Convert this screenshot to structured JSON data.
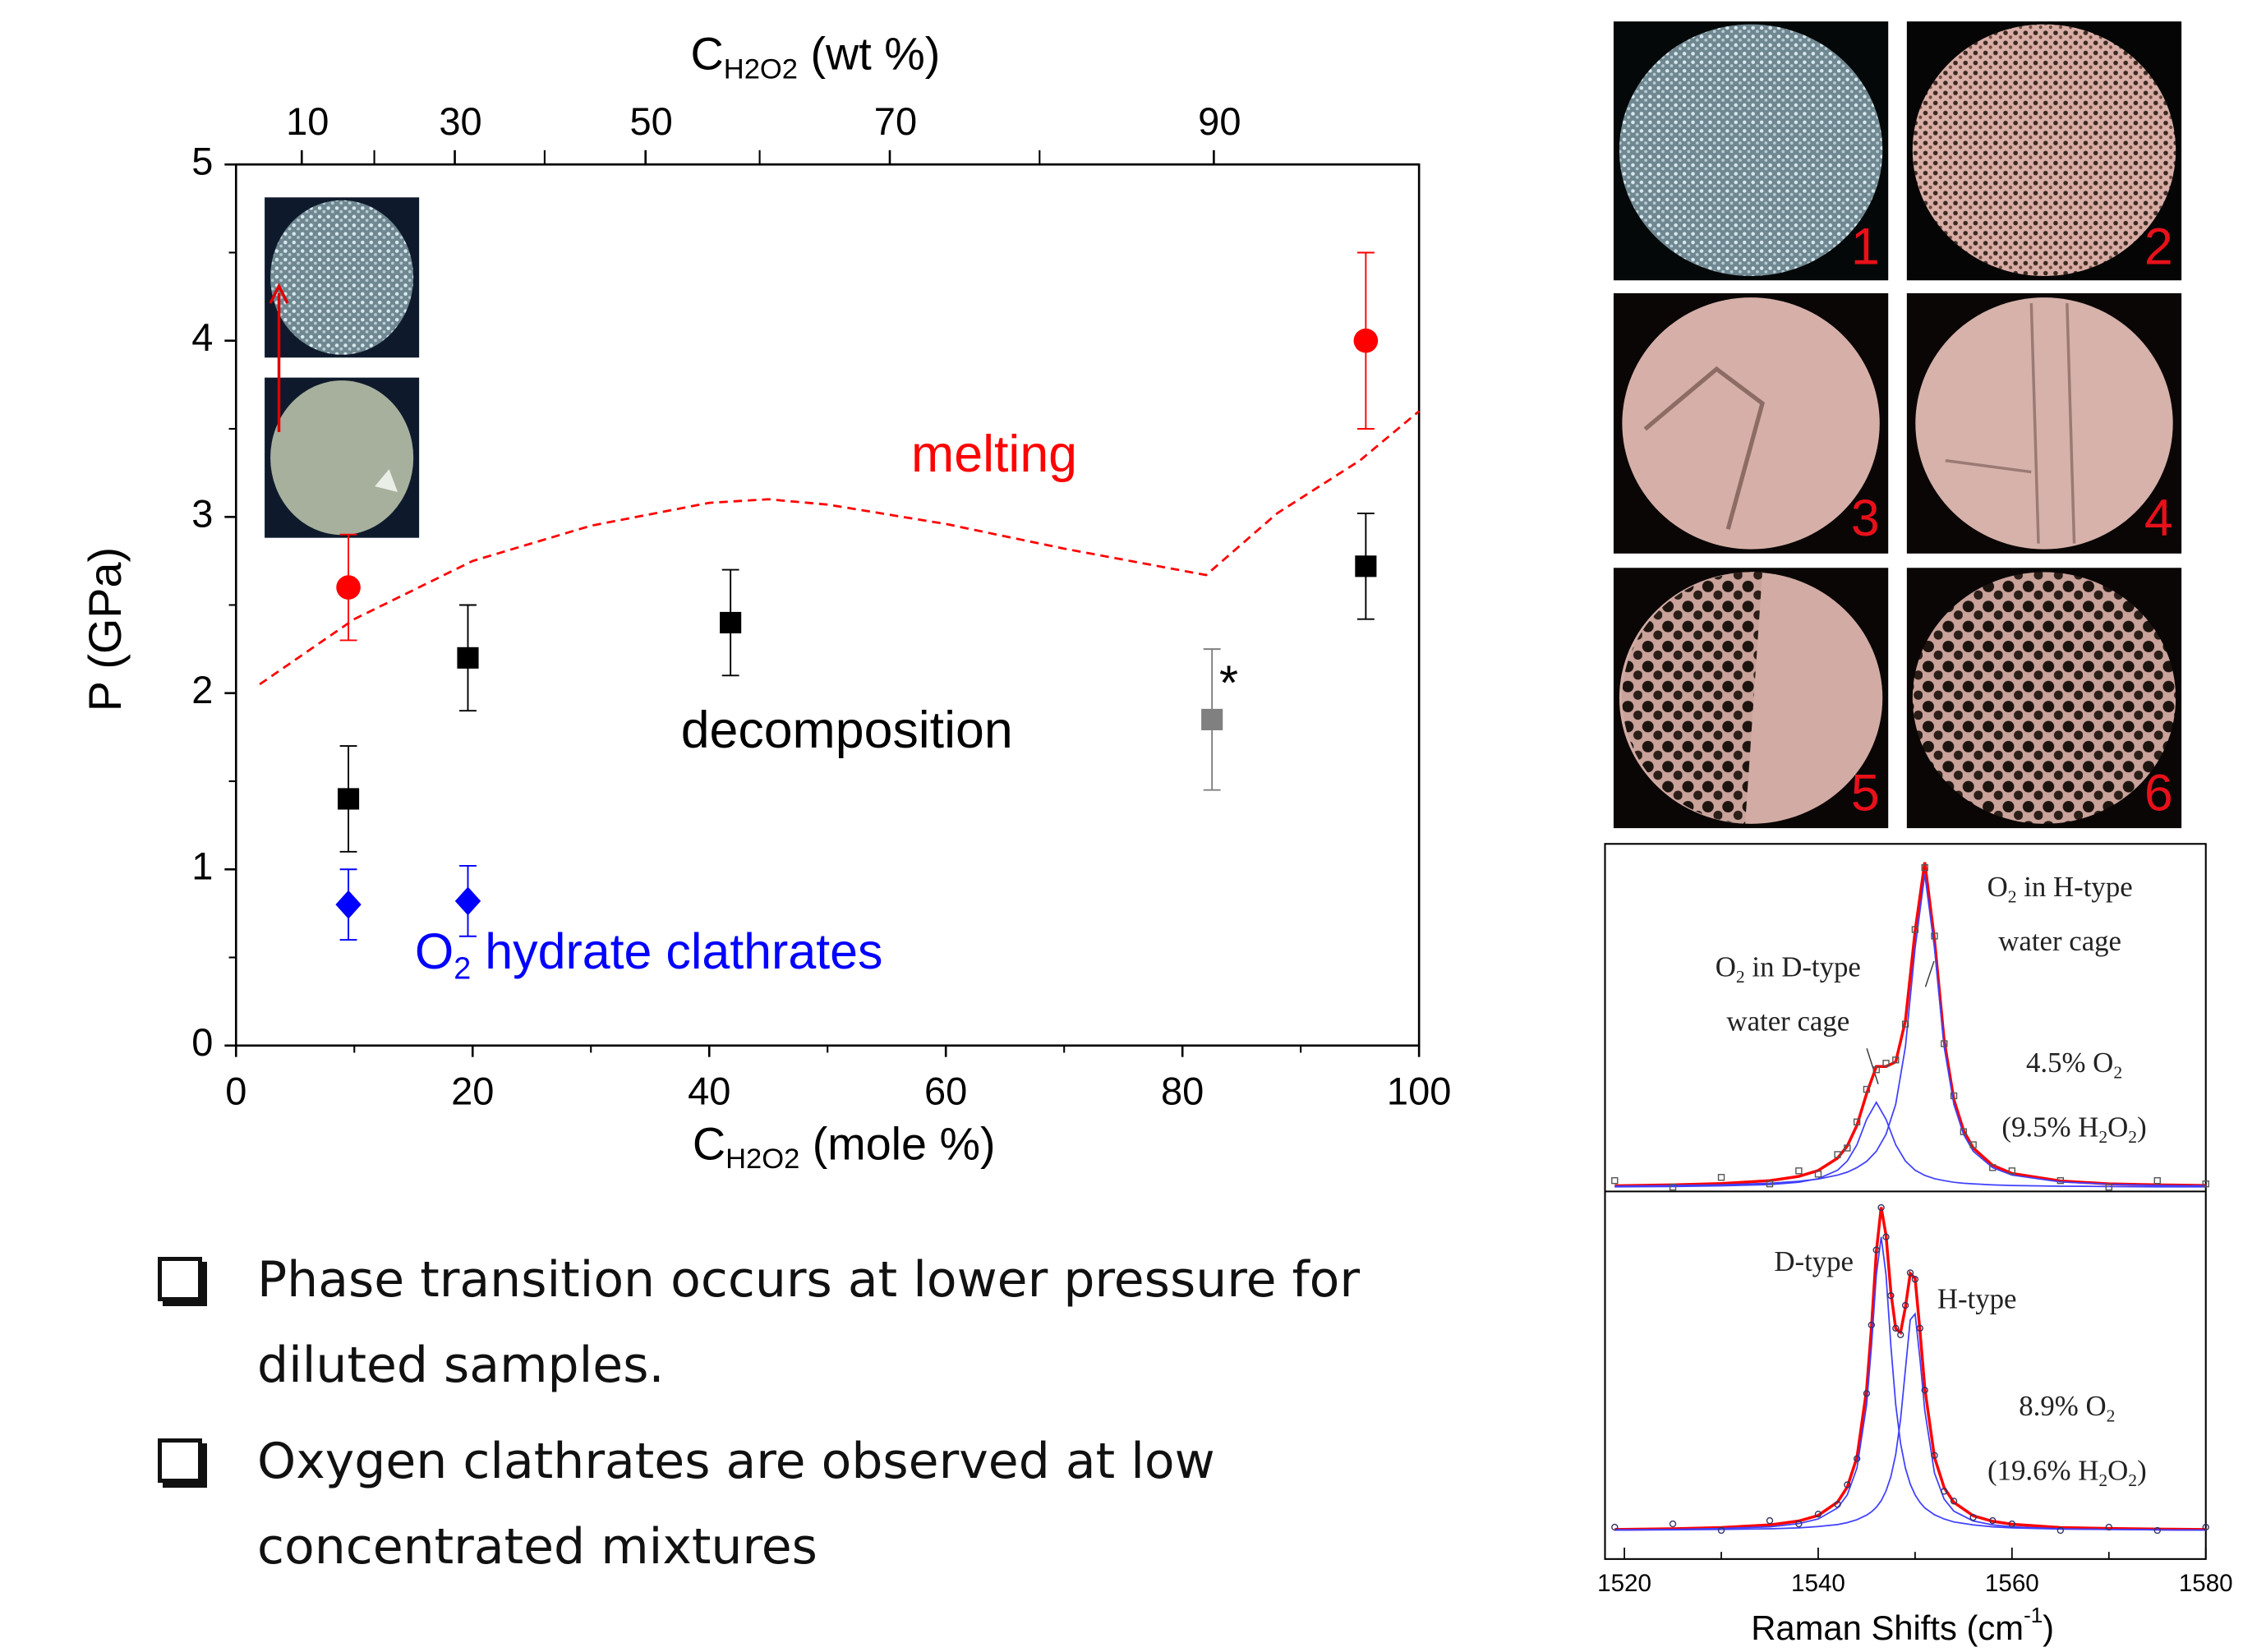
{
  "chart_data": [
    {
      "type": "scatter",
      "ylabel": "P (GPa)",
      "xlabel": [
        {
          "t": "C"
        },
        {
          "s": "H2O2"
        },
        {
          "t": " (mole %)"
        }
      ],
      "x2label": [
        {
          "t": "C"
        },
        {
          "s": "H2O2"
        },
        {
          "t": " (wt %)"
        }
      ],
      "xlim": [
        0,
        100
      ],
      "xticks": [
        0,
        20,
        40,
        60,
        80,
        100
      ],
      "ylim": [
        0,
        5
      ],
      "yticks": [
        0,
        1,
        2,
        3,
        4,
        5
      ],
      "x2lim": [
        0,
        100
      ],
      "x2ticks": [
        10,
        30,
        50,
        70,
        90
      ],
      "series": [
        {
          "color": "#ff0000",
          "marker": "circle",
          "x": [
            9.5,
            95.5
          ],
          "values": [
            2.6,
            4.0
          ],
          "errors": [
            0.3,
            0.5
          ]
        },
        {
          "color": "#000000",
          "marker": "square",
          "x": [
            9.5,
            19.6,
            41.8,
            95.5
          ],
          "values": [
            1.4,
            2.2,
            2.4,
            2.72
          ],
          "errors": [
            0.3,
            0.3,
            0.3,
            0.3
          ]
        },
        {
          "color": "#808080",
          "marker": "square",
          "x": [
            82.5
          ],
          "values": [
            1.85
          ],
          "errors": [
            0.4
          ]
        },
        {
          "color": "#0000ff",
          "marker": "diamond",
          "x": [
            9.5,
            19.6
          ],
          "values": [
            0.8,
            0.82
          ],
          "errors": [
            0.2,
            0.2
          ]
        }
      ],
      "curve": {
        "color": "#ff0000",
        "style": "dashed",
        "x": [
          2,
          10,
          20,
          30,
          40,
          45,
          50,
          60,
          70,
          82,
          88,
          95,
          100
        ],
        "values": [
          2.05,
          2.42,
          2.75,
          2.95,
          3.08,
          3.1,
          3.07,
          2.96,
          2.82,
          2.67,
          3.02,
          3.32,
          3.6
        ]
      },
      "annotations": [
        {
          "parts": [
            {
              "t": "melting"
            }
          ],
          "color": "#ff0000"
        },
        {
          "parts": [
            {
              "t": "decomposition"
            }
          ],
          "color": "#000000"
        },
        {
          "parts": [
            {
              "t": "O"
            },
            {
              "s": "2"
            },
            {
              "t": " hydrate clathrates"
            }
          ],
          "color": "#0000ff"
        },
        {
          "parts": [
            {
              "t": "*"
            }
          ],
          "color": "#000000"
        }
      ]
    },
    {
      "type": "line",
      "x": [
        1519,
        1525,
        1530,
        1535,
        1538,
        1540,
        1542,
        1543,
        1544,
        1545,
        1546,
        1547,
        1548,
        1549,
        1550,
        1551,
        1552,
        1553,
        1554,
        1555,
        1556,
        1558,
        1560,
        1565,
        1570,
        1575,
        1580
      ],
      "ylim": [
        0,
        1
      ],
      "series": [
        {
          "color": "#ff0000",
          "values": [
            0.004,
            0.007,
            0.011,
            0.02,
            0.033,
            0.051,
            0.089,
            0.126,
            0.19,
            0.287,
            0.37,
            0.37,
            0.384,
            0.51,
            0.785,
            0.996,
            0.759,
            0.45,
            0.269,
            0.174,
            0.12,
            0.067,
            0.042,
            0.019,
            0.01,
            0.007,
            0.005
          ]
        },
        {
          "color": "#3f3fff",
          "values": [
            0.001,
            0.002,
            0.004,
            0.008,
            0.015,
            0.026,
            0.052,
            0.08,
            0.13,
            0.208,
            0.26,
            0.208,
            0.13,
            0.08,
            0.052,
            0.036,
            0.026,
            0.02,
            0.015,
            0.012,
            0.01,
            0.007,
            0.005,
            0.003,
            0.002,
            0.001,
            0.001
          ]
        },
        {
          "color": "#3f3fff",
          "values": [
            0.003,
            0.005,
            0.007,
            0.012,
            0.018,
            0.025,
            0.037,
            0.046,
            0.06,
            0.079,
            0.11,
            0.162,
            0.254,
            0.43,
            0.733,
            0.96,
            0.733,
            0.43,
            0.254,
            0.162,
            0.11,
            0.06,
            0.037,
            0.016,
            0.009,
            0.005,
            0.004
          ]
        },
        {
          "color": "#555555",
          "marker": "square",
          "values": [
            0.02,
            0.0,
            0.03,
            0.01,
            0.05,
            0.04,
            0.1,
            0.12,
            0.2,
            0.3,
            0.36,
            0.38,
            0.39,
            0.5,
            0.79,
            0.98,
            0.77,
            0.44,
            0.28,
            0.17,
            0.13,
            0.06,
            0.05,
            0.02,
            0.0,
            0.02,
            0.01
          ]
        }
      ],
      "annotations": [
        {
          "parts": [
            {
              "t": "O"
            },
            {
              "s": "2"
            },
            {
              "t": " in H-type"
            }
          ]
        },
        {
          "parts": [
            {
              "t": "water cage"
            }
          ]
        },
        {
          "parts": [
            {
              "t": "O"
            },
            {
              "s": "2"
            },
            {
              "t": " in D-type"
            }
          ]
        },
        {
          "parts": [
            {
              "t": "water cage"
            }
          ]
        },
        {
          "parts": [
            {
              "t": "4.5% O"
            },
            {
              "s": "2"
            }
          ]
        },
        {
          "parts": [
            {
              "t": "(9.5% H"
            },
            {
              "s": "2"
            },
            {
              "t": "O"
            },
            {
              "s": "2"
            },
            {
              "t": ")"
            }
          ]
        }
      ]
    },
    {
      "type": "line",
      "x": [
        1519,
        1525,
        1530,
        1535,
        1538,
        1540,
        1542,
        1543,
        1544,
        1545,
        1545.5,
        1546,
        1546.5,
        1547,
        1547.5,
        1548,
        1548.5,
        1549,
        1549.5,
        1550,
        1550.5,
        1551,
        1552,
        1553,
        1554,
        1556,
        1558,
        1560,
        1565,
        1570,
        1575,
        1580
      ],
      "xlim": [
        1518,
        1580
      ],
      "xticks": [
        1520,
        1540,
        1560,
        1580
      ],
      "xlabel": [
        {
          "t": "Raman Shifts (cm"
        },
        {
          "u": "-1"
        },
        {
          "t": ")"
        }
      ],
      "ylim": [
        0,
        1
      ],
      "series": [
        {
          "color": "#ff0000",
          "values": [
            0.003,
            0.005,
            0.009,
            0.017,
            0.029,
            0.046,
            0.087,
            0.133,
            0.224,
            0.433,
            0.623,
            0.855,
            0.991,
            0.905,
            0.731,
            0.619,
            0.607,
            0.684,
            0.788,
            0.773,
            0.613,
            0.436,
            0.224,
            0.131,
            0.086,
            0.045,
            0.028,
            0.019,
            0.009,
            0.006,
            0.004,
            0.003
          ]
        },
        {
          "color": "#3f3fff",
          "values": [
            0.002,
            0.003,
            0.006,
            0.011,
            0.021,
            0.035,
            0.069,
            0.109,
            0.191,
            0.386,
            0.566,
            0.784,
            0.9,
            0.784,
            0.566,
            0.386,
            0.267,
            0.191,
            0.142,
            0.109,
            0.086,
            0.069,
            0.048,
            0.035,
            0.026,
            0.017,
            0.011,
            0.008,
            0.004,
            0.003,
            0.002,
            0.001
          ]
        },
        {
          "color": "#3f3fff",
          "values": [
            0.001,
            0.002,
            0.003,
            0.005,
            0.008,
            0.012,
            0.018,
            0.024,
            0.033,
            0.047,
            0.057,
            0.071,
            0.091,
            0.121,
            0.165,
            0.233,
            0.34,
            0.493,
            0.646,
            0.664,
            0.527,
            0.367,
            0.176,
            0.096,
            0.059,
            0.029,
            0.017,
            0.011,
            0.005,
            0.003,
            0.002,
            0.001
          ]
        },
        {
          "color": "#333366",
          "marker": "circle",
          "values": [
            0.01,
            0.02,
            0.0,
            0.03,
            0.02,
            0.05,
            0.08,
            0.14,
            0.22,
            0.42,
            0.63,
            0.86,
            0.99,
            0.9,
            0.72,
            0.62,
            0.6,
            0.69,
            0.79,
            0.77,
            0.62,
            0.43,
            0.23,
            0.12,
            0.09,
            0.04,
            0.03,
            0.02,
            0.0,
            0.01,
            0.0,
            0.01
          ]
        }
      ],
      "annotations": [
        {
          "parts": [
            {
              "t": "D-type"
            }
          ]
        },
        {
          "parts": [
            {
              "t": "H-type"
            }
          ]
        },
        {
          "parts": [
            {
              "t": "8.9% O"
            },
            {
              "s": "2"
            }
          ]
        },
        {
          "parts": [
            {
              "t": "(19.6% H"
            },
            {
              "s": "2"
            },
            {
              "t": "O"
            },
            {
              "s": "2"
            },
            {
              "t": ")"
            }
          ]
        }
      ]
    }
  ],
  "photos": {
    "labels": [
      "1",
      "2",
      "3",
      "4",
      "5",
      "6"
    ]
  },
  "bullets": [
    "Phase transition occurs at lower pressure for diluted samples.",
    "Oxygen clathrates are observed at low concentrated mixtures"
  ]
}
